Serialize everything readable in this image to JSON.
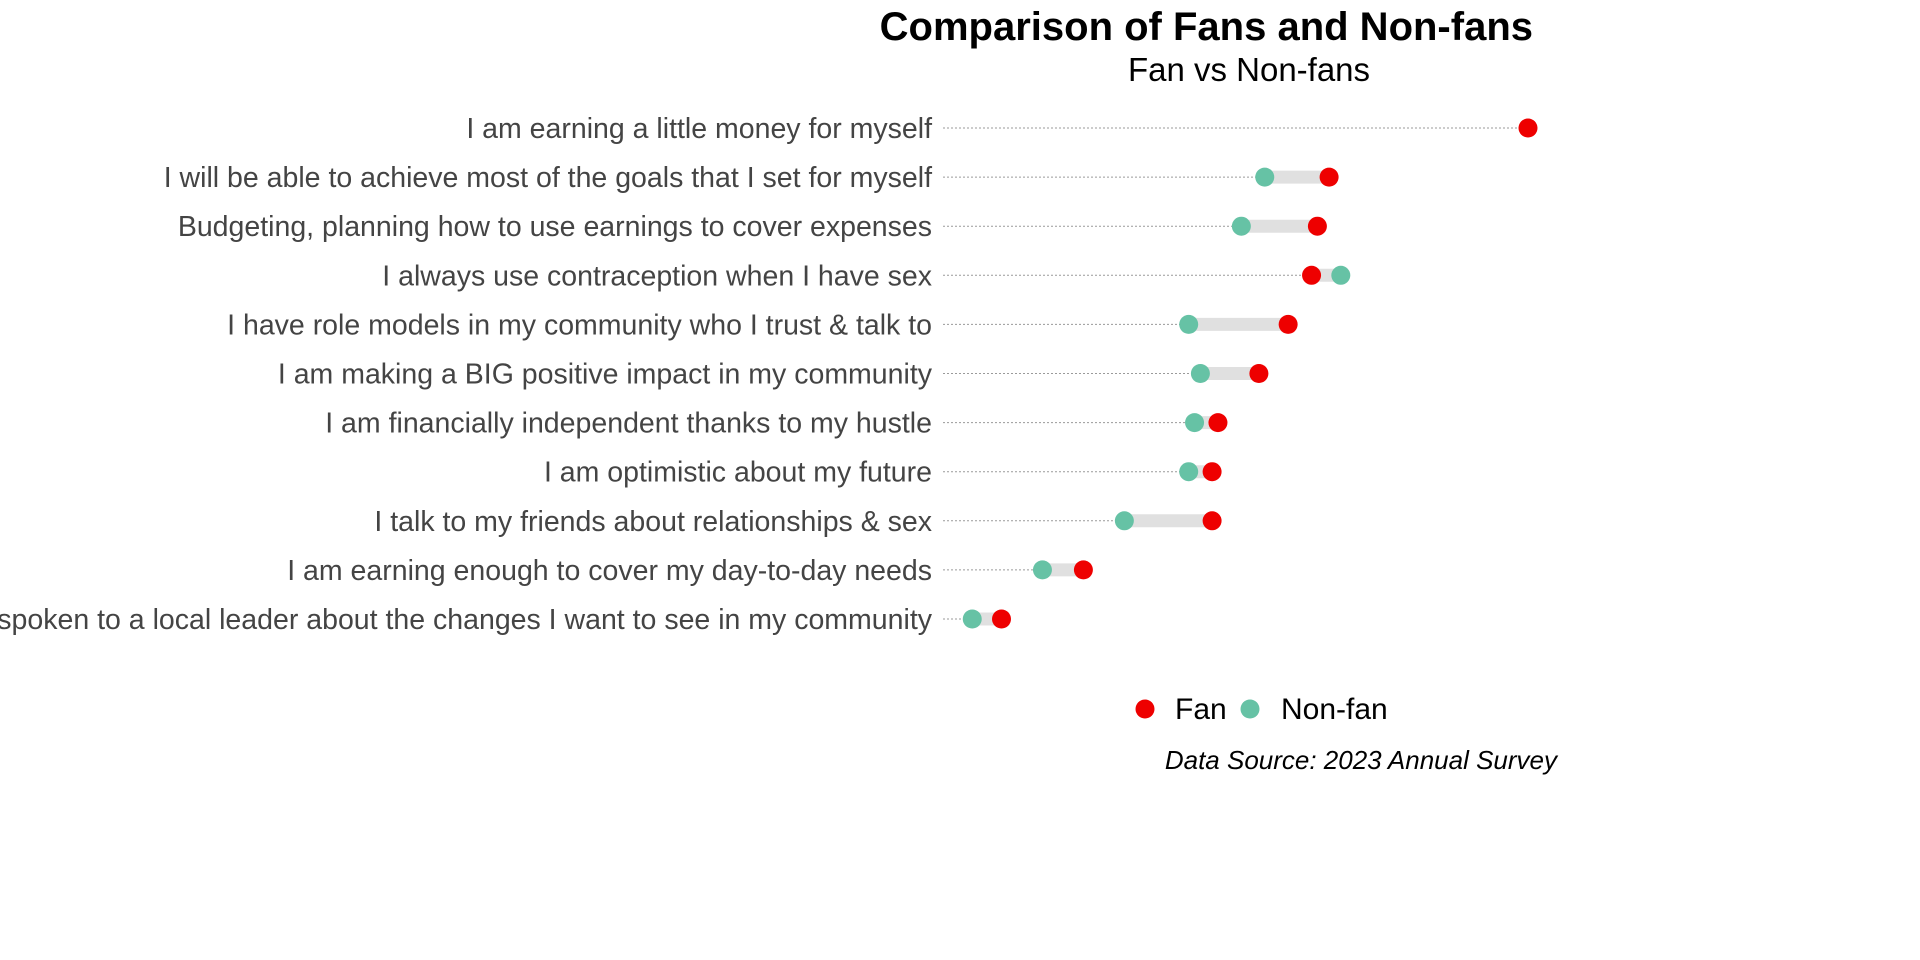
{
  "chart_data": {
    "type": "dumbbell",
    "title": "Comparison of Fans and Non-fans",
    "subtitle": "Fan vs Non-fans",
    "caption": "Data Source: 2023 Annual Survey",
    "xlim": [
      0,
      100
    ],
    "grid": false,
    "legend_position": "bottom",
    "categories": [
      "I am earning a little money for myself",
      "I will be able to achieve most of the goals that I set for myself",
      "Budgeting, planning how to use earnings to cover expenses",
      "I always use contraception when I have sex",
      "I have role models in my community who I trust & talk to",
      "I am making a BIG positive impact in my community",
      "I am financially independent thanks to my hustle",
      "I am optimistic about my future",
      "I talk to my friends about relationships & sex",
      "I am earning enough to cover my day-to-day needs",
      "I have spoken to a local leader about the changes I want to see in my community"
    ],
    "series": [
      {
        "name": "Fan",
        "color": "#ee0000",
        "values": [
          100,
          66,
          64,
          63,
          59,
          54,
          47,
          46,
          46,
          24,
          10
        ]
      },
      {
        "name": "Non-fan",
        "color": "#66c2a5",
        "values": [
          null,
          55,
          51,
          68,
          42,
          44,
          43,
          42,
          31,
          17,
          5
        ]
      }
    ]
  }
}
